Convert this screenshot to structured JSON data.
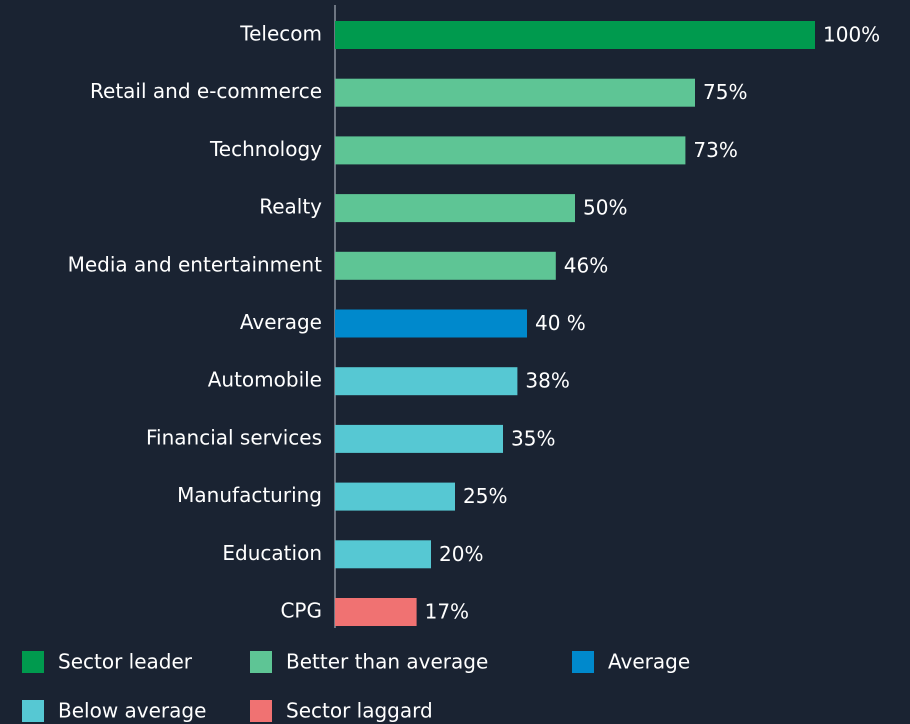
{
  "chart_data": {
    "type": "bar",
    "orientation": "horizontal",
    "categories": [
      "Telecom",
      "Retail and e-commerce",
      "Technology",
      "Realty",
      "Media and entertainment",
      "Average",
      "Automobile",
      "Financial services",
      "Manufacturing",
      "Education",
      "CPG"
    ],
    "values": [
      100,
      75,
      73,
      50,
      46,
      40,
      38,
      35,
      25,
      20,
      17
    ],
    "value_labels": [
      "100%",
      "75%",
      "73%",
      "50%",
      "46%",
      "40 %",
      "38%",
      "35%",
      "25%",
      "20%",
      "17%"
    ],
    "colors": [
      "#009a4e",
      "#5ec595",
      "#5ec595",
      "#5ec595",
      "#5ec595",
      "#0089cc",
      "#56c8d3",
      "#56c8d3",
      "#56c8d3",
      "#56c8d3",
      "#f07272"
    ],
    "xlim": [
      0,
      100
    ],
    "legend": [
      {
        "name": "Sector leader",
        "color": "#009a4e"
      },
      {
        "name": "Better than average",
        "color": "#5ec595"
      },
      {
        "name": "Average",
        "color": "#0089cc"
      },
      {
        "name": "Below average",
        "color": "#56c8d3"
      },
      {
        "name": "Sector laggard",
        "color": "#f07272"
      }
    ]
  }
}
